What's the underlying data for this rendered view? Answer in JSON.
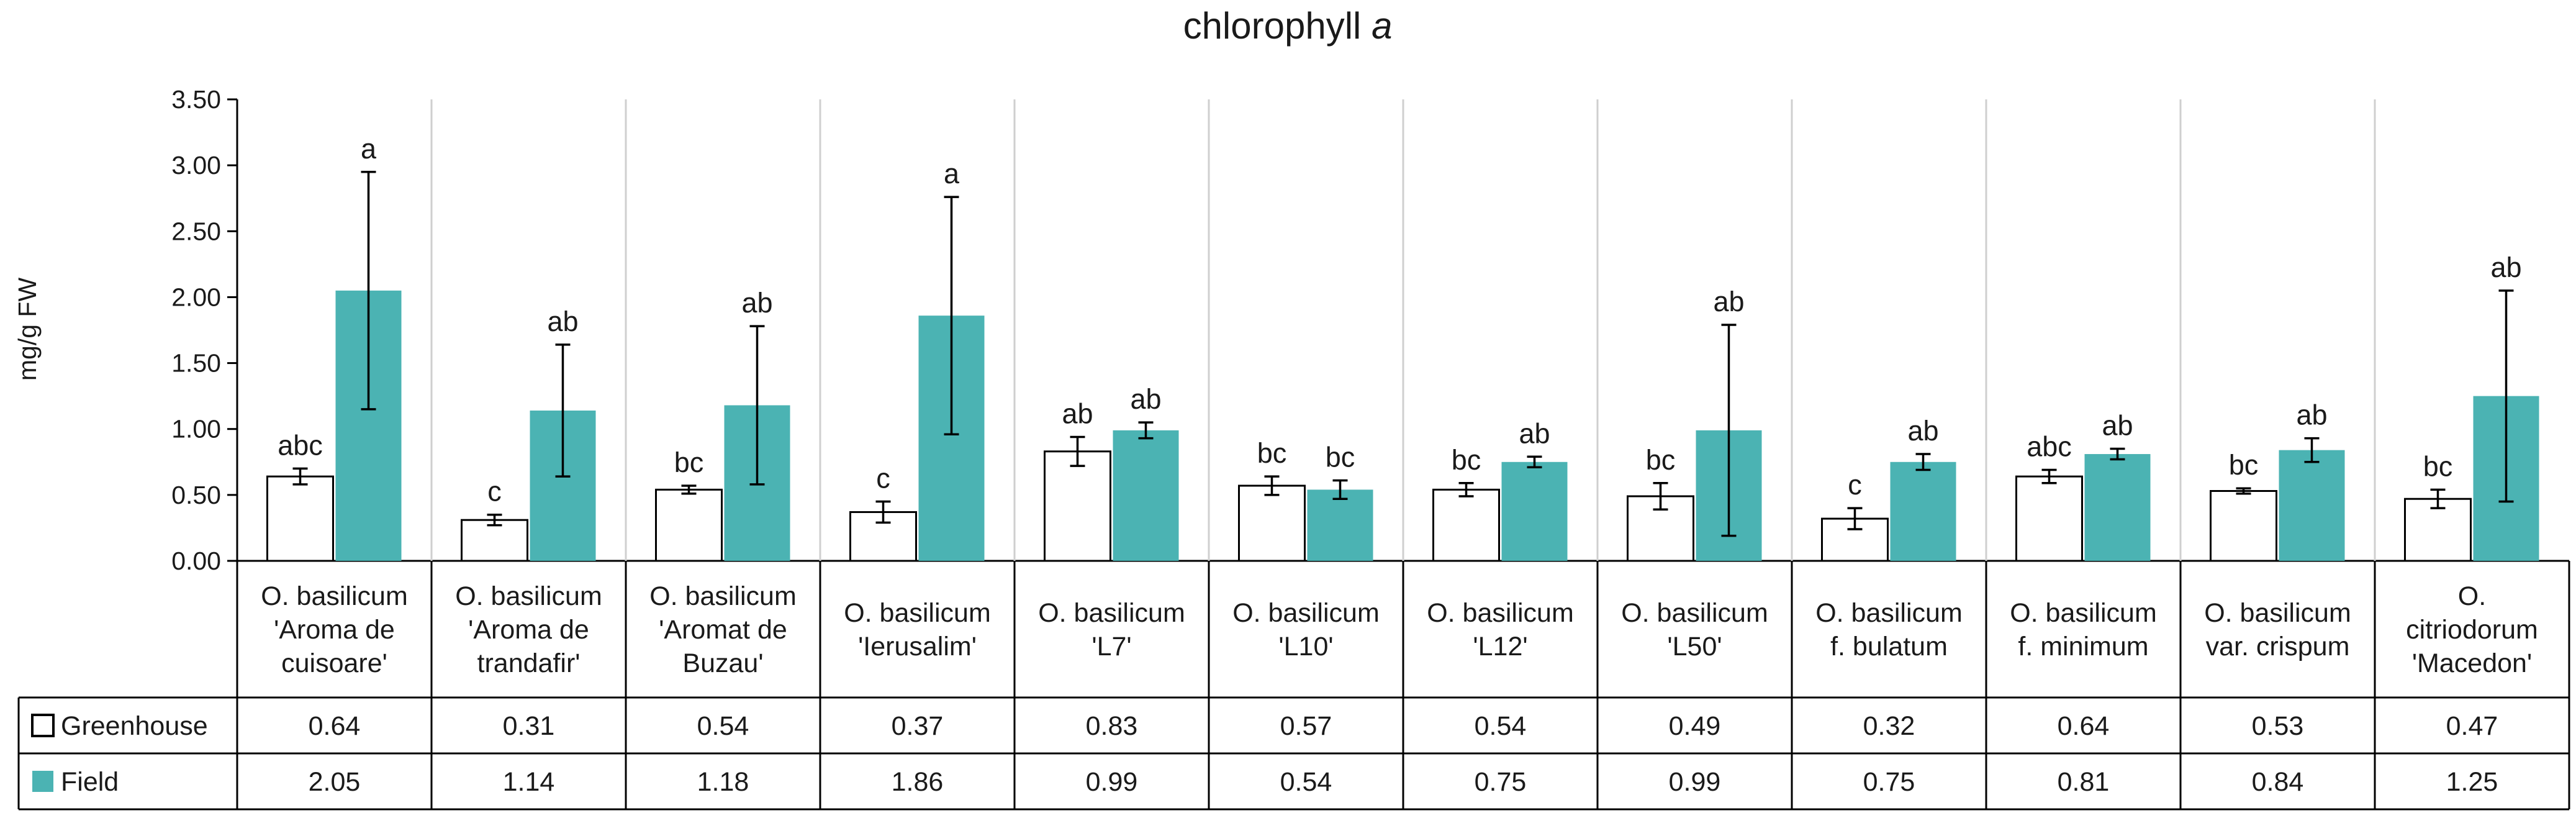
{
  "chart_data": {
    "type": "bar",
    "title": "chlorophyll",
    "title_italic": "a",
    "ylabel": "mg/g FW",
    "ylim": [
      0,
      3.5
    ],
    "yticks": [
      "0.00",
      "0.50",
      "1.00",
      "1.50",
      "2.00",
      "2.50",
      "3.00",
      "3.50"
    ],
    "categories": [
      [
        "O. basilicum",
        "'Aroma de",
        "cuisoare'"
      ],
      [
        "O. basilicum",
        "'Aroma de",
        "trandafir'"
      ],
      [
        "O. basilicum",
        "'Aromat de",
        "Buzau'"
      ],
      [
        "O. basilicum",
        "'Ierusalim'"
      ],
      [
        "O. basilicum",
        "'L7'"
      ],
      [
        "O. basilicum",
        "'L10'"
      ],
      [
        "O. basilicum",
        "'L12'"
      ],
      [
        "O. basilicum",
        "'L50'"
      ],
      [
        "O. basilicum",
        "f. bulatum"
      ],
      [
        "O. basilicum",
        "f. minimum"
      ],
      [
        "O. basilicum",
        "var. crispum"
      ],
      [
        "O.",
        "citriodorum",
        "'Macedon'"
      ]
    ],
    "series": [
      {
        "name": "Greenhouse",
        "color": "#ffffff",
        "stroke": "#000000",
        "values": [
          0.64,
          0.31,
          0.54,
          0.37,
          0.83,
          0.57,
          0.54,
          0.49,
          0.32,
          0.64,
          0.53,
          0.47
        ],
        "labels": [
          "0.64",
          "0.31",
          "0.54",
          "0.37",
          "0.83",
          "0.57",
          "0.54",
          "0.49",
          "0.32",
          "0.64",
          "0.53",
          "0.47"
        ],
        "errors": [
          0.06,
          0.04,
          0.03,
          0.08,
          0.11,
          0.07,
          0.05,
          0.1,
          0.08,
          0.05,
          0.02,
          0.07
        ],
        "letters": [
          "abc",
          "c",
          "bc",
          "c",
          "ab",
          "bc",
          "bc",
          "bc",
          "c",
          "abc",
          "bc",
          "bc"
        ]
      },
      {
        "name": "Field",
        "color": "#4bb3b3",
        "stroke": "#4bb3b3",
        "values": [
          2.05,
          1.14,
          1.18,
          1.86,
          0.99,
          0.54,
          0.75,
          0.99,
          0.75,
          0.81,
          0.84,
          1.25
        ],
        "labels": [
          "2.05",
          "1.14",
          "1.18",
          "1.86",
          "0.99",
          "0.54",
          "0.75",
          "0.99",
          "0.75",
          "0.81",
          "0.84",
          "1.25"
        ],
        "errors": [
          0.9,
          0.5,
          0.6,
          0.9,
          0.06,
          0.07,
          0.04,
          0.8,
          0.06,
          0.04,
          0.09,
          0.8
        ],
        "letters": [
          "a",
          "ab",
          "ab",
          "a",
          "ab",
          "bc",
          "ab",
          "ab",
          "ab",
          "ab",
          "ab",
          "ab"
        ]
      }
    ],
    "grid": false,
    "legend": "data-table"
  }
}
